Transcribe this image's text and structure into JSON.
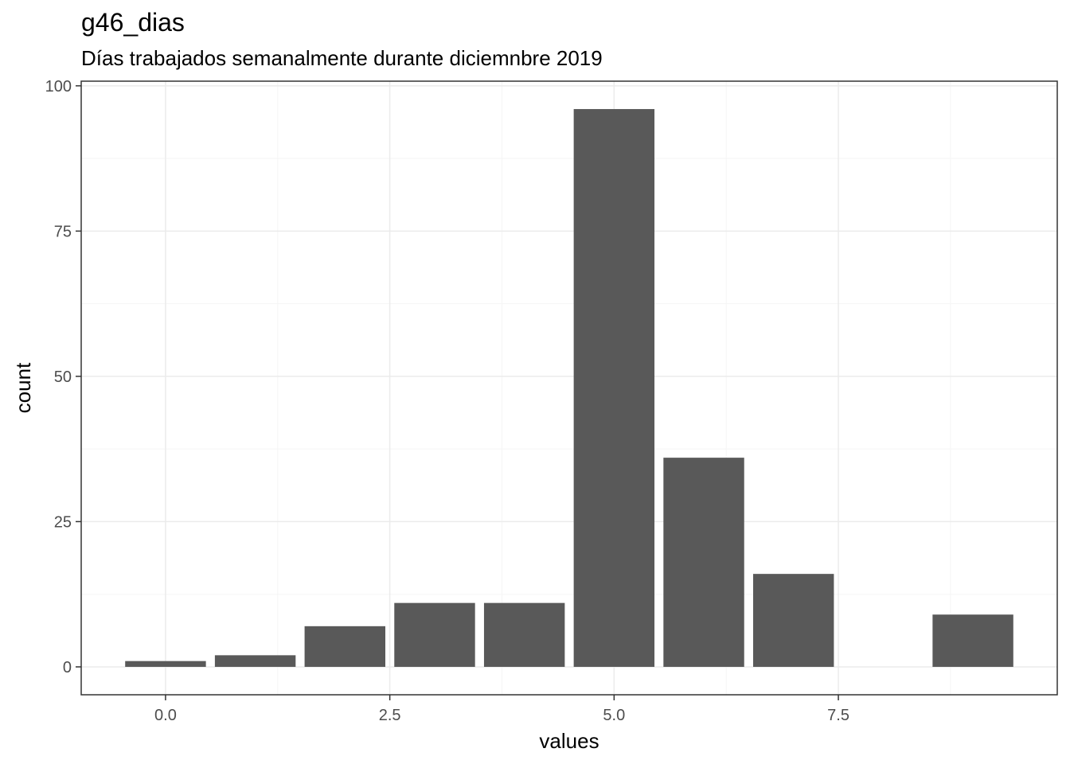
{
  "chart_data": {
    "type": "bar",
    "title": "g46_dias",
    "subtitle": "Días trabajados semanalmente durante diciemnbre 2019",
    "xlabel": "values",
    "ylabel": "count",
    "x": [
      0,
      1,
      2,
      3,
      4,
      5,
      6,
      7,
      9
    ],
    "values": [
      1,
      2,
      7,
      11,
      11,
      96,
      36,
      16,
      9
    ],
    "bar_width": 0.9,
    "xlim": [
      -0.94,
      9.94
    ],
    "ylim": [
      -4.8,
      100.8
    ],
    "x_ticks": [
      0,
      2.5,
      5,
      7.5
    ],
    "x_tick_labels": [
      "0.0",
      "2.5",
      "5.0",
      "7.5"
    ],
    "y_ticks": [
      0,
      25,
      50,
      75,
      100
    ],
    "y_tick_labels": [
      "0",
      "25",
      "50",
      "75",
      "100"
    ],
    "grid": true,
    "colors": {
      "bar": "#595959",
      "grid_major": "#ebebeb",
      "grid_minor": "#f5f5f5",
      "panel_border": "#333333"
    }
  }
}
